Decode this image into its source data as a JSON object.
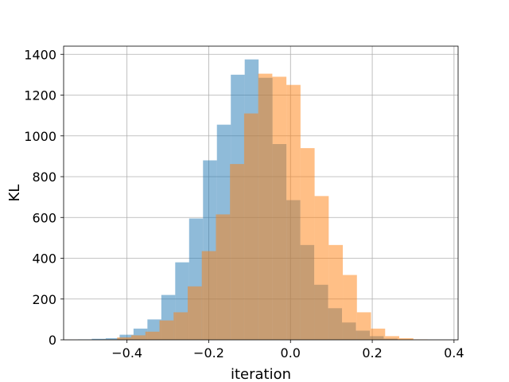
{
  "chart_data": {
    "type": "histogram",
    "xlabel": "iteration",
    "ylabel": "KL",
    "xlim": [
      -0.555,
      0.41
    ],
    "ylim": [
      0,
      1440
    ],
    "grid": true,
    "x_ticks": [
      -0.4,
      -0.2,
      0.0,
      0.2,
      0.4
    ],
    "x_tick_labels": [
      "−0.4",
      "−0.2",
      "0.0",
      "0.2",
      "0.4"
    ],
    "y_ticks": [
      0,
      200,
      400,
      600,
      800,
      1000,
      1200,
      1400
    ],
    "y_tick_labels": [
      "0",
      "200",
      "400",
      "600",
      "800",
      "1000",
      "1200",
      "1400"
    ],
    "colors": {
      "series_1": "#1f77b4",
      "series_2": "#ff7f0e",
      "grid": "#b0b0b0",
      "axes": "#000000"
    },
    "alpha": 0.5,
    "series": [
      {
        "bin_edges": [
          -0.52,
          -0.486,
          -0.452,
          -0.418,
          -0.384,
          -0.35,
          -0.316,
          -0.282,
          -0.248,
          -0.214,
          -0.18,
          -0.146,
          -0.112,
          -0.078,
          -0.044,
          -0.01,
          0.024,
          0.058,
          0.092,
          0.126,
          0.16,
          0.194,
          0.228,
          0.262,
          0.296
        ],
        "counts": [
          2,
          5,
          8,
          25,
          55,
          100,
          220,
          380,
          595,
          880,
          1055,
          1300,
          1375,
          1285,
          960,
          685,
          465,
          270,
          155,
          85,
          45,
          18,
          6,
          2
        ]
      },
      {
        "bin_edges": [
          -0.493,
          -0.4585,
          -0.424,
          -0.3895,
          -0.355,
          -0.3205,
          -0.286,
          -0.2515,
          -0.217,
          -0.1825,
          -0.148,
          -0.1135,
          -0.079,
          -0.0445,
          -0.01,
          0.0245,
          0.059,
          0.0935,
          0.128,
          0.1625,
          0.197,
          0.2315,
          0.266,
          0.3005,
          0.335
        ],
        "counts": [
          0,
          2,
          12,
          22,
          40,
          95,
          135,
          262,
          435,
          615,
          862,
          1110,
          1305,
          1290,
          1250,
          940,
          705,
          465,
          318,
          135,
          55,
          18,
          8,
          2
        ]
      }
    ]
  }
}
